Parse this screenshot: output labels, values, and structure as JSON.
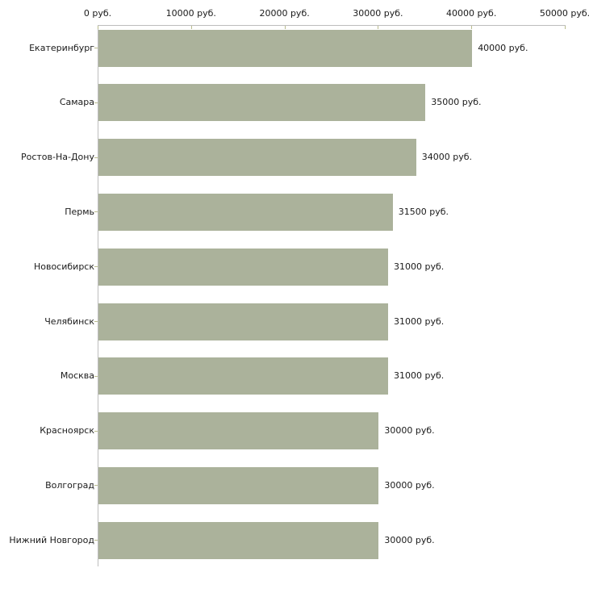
{
  "chart_data": {
    "type": "bar",
    "orientation": "horizontal",
    "title": "",
    "xlabel": "",
    "ylabel": "",
    "xlim": [
      0,
      50000
    ],
    "grid": false,
    "legend": "none",
    "x_ticks": [
      {
        "value": 0,
        "label": "0 руб."
      },
      {
        "value": 10000,
        "label": "10000 руб."
      },
      {
        "value": 20000,
        "label": "20000 руб."
      },
      {
        "value": 30000,
        "label": "30000 руб."
      },
      {
        "value": 40000,
        "label": "40000 руб."
      },
      {
        "value": 50000,
        "label": "50000 руб."
      }
    ],
    "categories": [
      "Екатеринбург",
      "Самара",
      "Ростов-На-Дону",
      "Пермь",
      "Новосибирск",
      "Челябинск",
      "Москва",
      "Красноярск",
      "Волгоград",
      "Нижний Новгород"
    ],
    "values": [
      40000,
      35000,
      34000,
      31500,
      31000,
      31000,
      31000,
      30000,
      30000,
      30000
    ],
    "value_labels": [
      "40000 руб.",
      "35000 руб.",
      "34000 руб.",
      "31500 руб.",
      "31000 руб.",
      "31000 руб.",
      "31000 руб.",
      "30000 руб.",
      "30000 руб.",
      "30000 руб."
    ],
    "colors": {
      "bar": "#abb29b",
      "axis_line": "#bdbdbd",
      "tick_mark": "#b9bc8e",
      "text": "#1a1a1a"
    }
  }
}
